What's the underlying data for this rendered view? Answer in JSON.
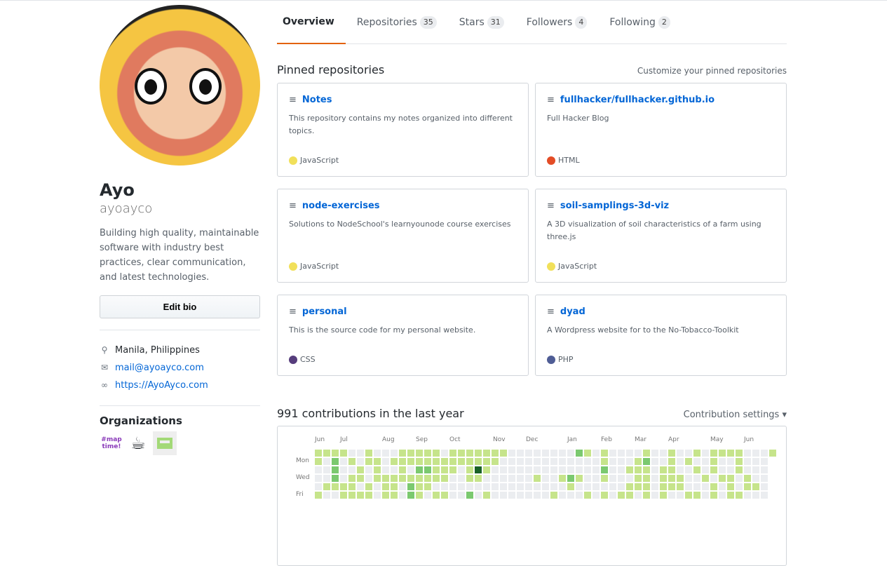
{
  "profile": {
    "name": "Ayo",
    "login": "ayoayco",
    "bio": "Building high quality, maintainable software with industry best practices, clear communication, and latest technologies.",
    "edit_bio": "Edit bio",
    "location": "Manila, Philippines",
    "email": "mail@ayoayco.com",
    "website": "https://AyoAyco.com",
    "organizations_title": "Organizations",
    "orgs": [
      {
        "label": "#maptime!"
      },
      {
        "label": "coffee"
      },
      {
        "label": "green-org"
      }
    ]
  },
  "tabs": [
    {
      "label": "Overview",
      "count": null
    },
    {
      "label": "Repositories",
      "count": "35"
    },
    {
      "label": "Stars",
      "count": "31"
    },
    {
      "label": "Followers",
      "count": "4"
    },
    {
      "label": "Following",
      "count": "2"
    }
  ],
  "pinned": {
    "title": "Pinned repositories",
    "customize": "Customize your pinned repositories",
    "repos": [
      {
        "name": "Notes",
        "desc": "This repository contains my notes organized into different topics.",
        "lang": "JavaScript",
        "color": "#f1e05a"
      },
      {
        "name": "fullhacker/fullhacker.github.io",
        "desc": "Full Hacker Blog",
        "lang": "HTML",
        "color": "#e34c26"
      },
      {
        "name": "node-exercises",
        "desc": "Solutions to NodeSchool's learnyounode course exercises",
        "lang": "JavaScript",
        "color": "#f1e05a"
      },
      {
        "name": "soil-samplings-3d-viz",
        "desc": "A 3D visualization of soil characteristics of a farm using three.js",
        "lang": "JavaScript",
        "color": "#f1e05a"
      },
      {
        "name": "personal",
        "desc": "This is the source code for my personal website.",
        "lang": "CSS",
        "color": "#563d7c"
      },
      {
        "name": "dyad",
        "desc": "A Wordpress website for to the No-Tobacco-Toolkit",
        "lang": "PHP",
        "color": "#4F5D95"
      }
    ]
  },
  "contributions": {
    "title": "991 contributions in the last year",
    "settings": "Contribution settings ▾",
    "months": [
      "Jun",
      "Jul",
      "Aug",
      "Sep",
      "Oct",
      "Nov",
      "Dec",
      "Jan",
      "Feb",
      "Mar",
      "Apr",
      "May",
      "Jun"
    ],
    "days": [
      "Mon",
      "Wed",
      "Fri"
    ],
    "colors": [
      "#ebedf0",
      "#c6e48b",
      "#7bc96f",
      "#239a3b",
      "#196127"
    ],
    "weeks_by_day": [
      "1111001000111110111111100000000210100001001001011110001",
      "102010110111111111111100000000000010001200101001001000",
      "002001010010221110141000000000000020011101100101001000",
      "002011011111111100110000001001210010001101110010110100",
      "011110101102110000000000000000100000011101110001010110",
      "100111101102101100201000000010001010110101001101011000"
    ]
  }
}
